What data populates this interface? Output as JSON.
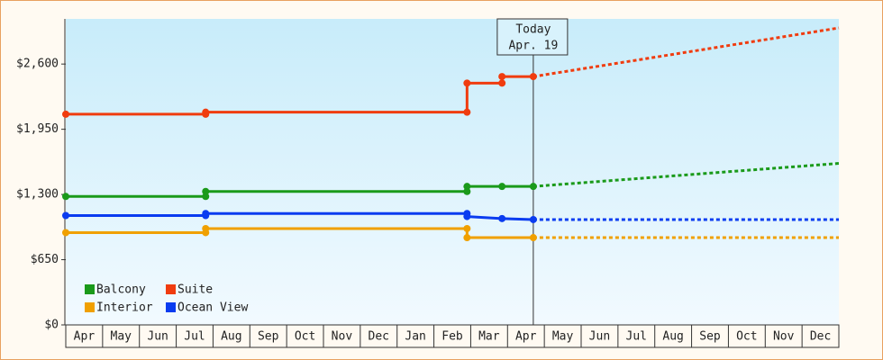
{
  "chart_data": {
    "type": "line",
    "categories": [
      "Apr",
      "May",
      "Jun",
      "Jul",
      "Aug",
      "Sep",
      "Oct",
      "Nov",
      "Dec",
      "Jan",
      "Feb",
      "Mar",
      "Apr",
      "May",
      "Jun",
      "Jul",
      "Aug",
      "Sep",
      "Oct",
      "Nov",
      "Dec"
    ],
    "xlim": [
      0,
      21
    ],
    "ylim": [
      0,
      3050
    ],
    "yticks": [
      {
        "value": 0,
        "label": "$0"
      },
      {
        "value": 650,
        "label": "$650"
      },
      {
        "value": 1300,
        "label": "$1,300"
      },
      {
        "value": 1950,
        "label": "$1,950"
      },
      {
        "value": 2600,
        "label": "$2,600"
      }
    ],
    "annotation": {
      "x": 12.7,
      "lines": [
        "Today",
        "Apr. 19"
      ]
    },
    "series": [
      {
        "name": "Balcony",
        "color": "#1a9a1a",
        "x": [
          0,
          3.8,
          3.8,
          10.9,
          10.9,
          11.85,
          12.7
        ],
        "values": [
          1280,
          1280,
          1330,
          1330,
          1380,
          1380,
          1380
        ],
        "forecast_x": [
          12.7,
          21
        ],
        "forecast_values": [
          1380,
          1610
        ]
      },
      {
        "name": "Suite",
        "color": "#f03c0f",
        "x": [
          0,
          3.8,
          3.8,
          10.9,
          10.9,
          11.85,
          11.85,
          12.7
        ],
        "values": [
          2100,
          2100,
          2120,
          2120,
          2410,
          2410,
          2475,
          2475
        ],
        "forecast_x": [
          12.7,
          21
        ],
        "forecast_values": [
          2475,
          2960
        ]
      },
      {
        "name": "Interior",
        "color": "#f0a000",
        "x": [
          0,
          3.8,
          3.8,
          10.9,
          10.9,
          12.7
        ],
        "values": [
          920,
          920,
          960,
          960,
          870,
          870
        ],
        "forecast_x": [
          12.7,
          21
        ],
        "forecast_values": [
          870,
          870
        ]
      },
      {
        "name": "Ocean View",
        "color": "#0a3cf0",
        "x": [
          0,
          3.8,
          3.8,
          10.9,
          10.9,
          11.85,
          12.7
        ],
        "values": [
          1090,
          1090,
          1110,
          1110,
          1080,
          1060,
          1050
        ],
        "forecast_x": [
          12.7,
          21
        ],
        "forecast_values": [
          1050,
          1050
        ]
      }
    ]
  }
}
